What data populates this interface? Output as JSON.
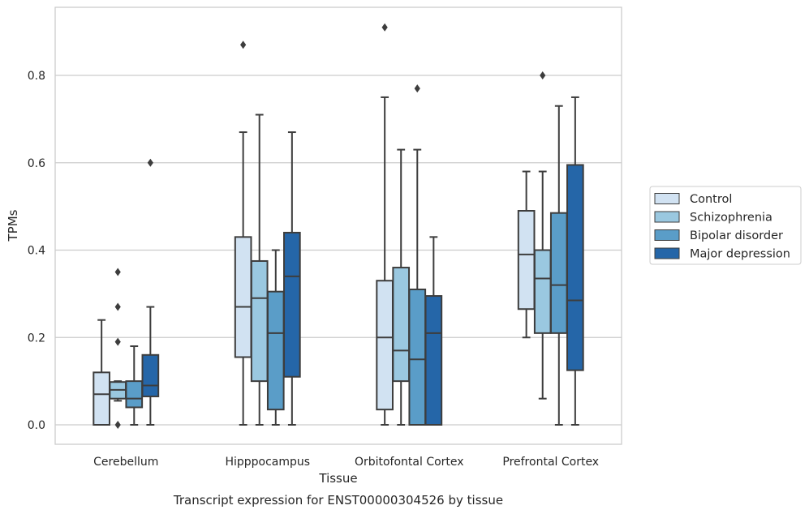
{
  "chart_data": {
    "type": "box",
    "title": "",
    "caption": "Transcript expression for ENST00000304526 by tissue",
    "xlabel": "Tissue",
    "ylabel": "TPMs",
    "ylim": [
      -0.045,
      0.96
    ],
    "yticks": [
      0.0,
      0.2,
      0.4,
      0.6,
      0.8
    ],
    "ytick_labels": [
      "0.0",
      "0.2",
      "0.4",
      "0.6",
      "0.8"
    ],
    "grid": "horizontal",
    "legend_position": "right",
    "categories": [
      "Cerebellum",
      "Hipppocampus",
      "Orbitofontal Cortex",
      "Prefrontal Cortex"
    ],
    "series": [
      {
        "name": "Control",
        "color": "#d1e2f2",
        "boxes": [
          {
            "whislo": 0.0,
            "q1": 0.0,
            "med": 0.07,
            "q3": 0.12,
            "whishi": 0.24,
            "fliers": []
          },
          {
            "whislo": 0.0,
            "q1": 0.155,
            "med": 0.27,
            "q3": 0.43,
            "whishi": 0.67,
            "fliers": [
              0.87
            ]
          },
          {
            "whislo": 0.0,
            "q1": 0.035,
            "med": 0.2,
            "q3": 0.33,
            "whishi": 0.75,
            "fliers": [
              0.91
            ]
          },
          {
            "whislo": 0.2,
            "q1": 0.265,
            "med": 0.39,
            "q3": 0.49,
            "whishi": 0.58,
            "fliers": []
          }
        ]
      },
      {
        "name": "Schizophrenia",
        "color": "#9ac8e0",
        "boxes": [
          {
            "whislo": 0.055,
            "q1": 0.06,
            "med": 0.08,
            "q3": 0.098,
            "whishi": 0.1,
            "fliers": [
              0.35,
              0.27,
              0.19,
              0.0
            ]
          },
          {
            "whislo": 0.0,
            "q1": 0.1,
            "med": 0.29,
            "q3": 0.375,
            "whishi": 0.71,
            "fliers": []
          },
          {
            "whislo": 0.0,
            "q1": 0.1,
            "med": 0.17,
            "q3": 0.36,
            "whishi": 0.63,
            "fliers": []
          },
          {
            "whislo": 0.06,
            "q1": 0.21,
            "med": 0.335,
            "q3": 0.4,
            "whishi": 0.58,
            "fliers": [
              0.8
            ]
          }
        ]
      },
      {
        "name": "Bipolar disorder",
        "color": "#5a9dc8",
        "boxes": [
          {
            "whislo": 0.0,
            "q1": 0.04,
            "med": 0.06,
            "q3": 0.1,
            "whishi": 0.18,
            "fliers": []
          },
          {
            "whislo": 0.0,
            "q1": 0.035,
            "med": 0.21,
            "q3": 0.305,
            "whishi": 0.4,
            "fliers": []
          },
          {
            "whislo": 0.0,
            "q1": 0.0,
            "med": 0.15,
            "q3": 0.31,
            "whishi": 0.63,
            "fliers": [
              0.77
            ]
          },
          {
            "whislo": 0.0,
            "q1": 0.21,
            "med": 0.32,
            "q3": 0.485,
            "whishi": 0.73,
            "fliers": []
          }
        ]
      },
      {
        "name": "Major depression",
        "color": "#2566a8",
        "boxes": [
          {
            "whislo": 0.0,
            "q1": 0.065,
            "med": 0.09,
            "q3": 0.16,
            "whishi": 0.27,
            "fliers": [
              0.6
            ]
          },
          {
            "whislo": 0.0,
            "q1": 0.11,
            "med": 0.34,
            "q3": 0.44,
            "whishi": 0.67,
            "fliers": []
          },
          {
            "whislo": 0.0,
            "q1": 0.0,
            "med": 0.21,
            "q3": 0.295,
            "whishi": 0.43,
            "fliers": []
          },
          {
            "whislo": 0.0,
            "q1": 0.125,
            "med": 0.285,
            "q3": 0.595,
            "whishi": 0.75,
            "fliers": []
          }
        ]
      }
    ]
  }
}
